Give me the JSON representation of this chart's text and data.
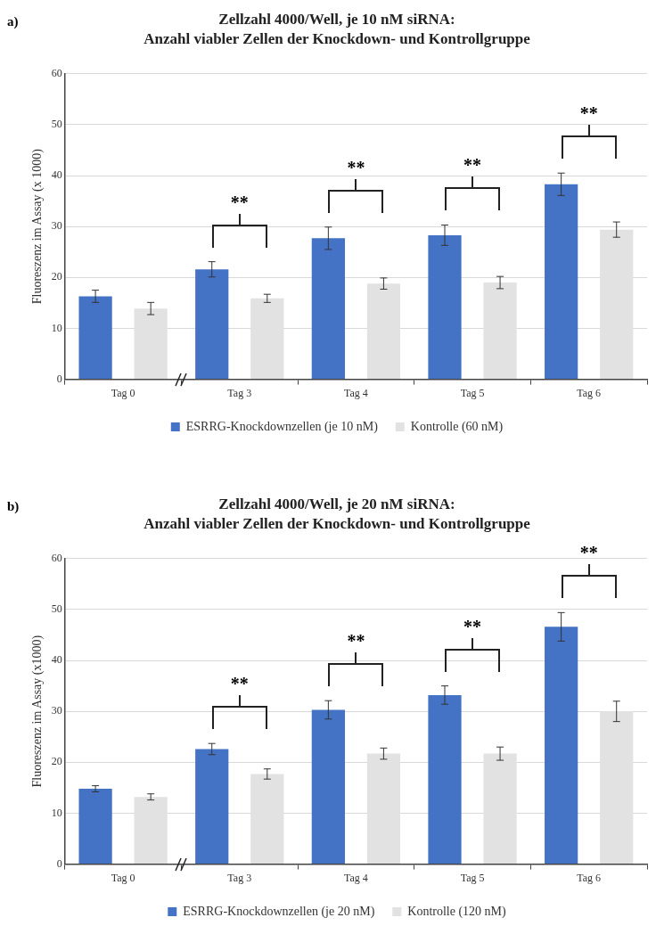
{
  "chart_data": [
    {
      "type": "bar",
      "title": "Zellzahl 4000/Well, je 10 nM siRNA:",
      "subtitle": "Anzahl viabler Zellen der Knockdown- und Kontrollgruppe",
      "ylabel": "Fluoreszenz im Assay (x 1000)",
      "categories": [
        "Tag 0",
        "Tag 3",
        "Tag 4",
        "Tag 5",
        "Tag 6"
      ],
      "series": [
        {
          "name": "ESRRG-Knockdownzellen (je 10 nM)",
          "color": "#4472c4",
          "values": [
            16.3,
            21.6,
            27.7,
            28.3,
            38.3
          ],
          "errors": [
            1.2,
            1.5,
            2.2,
            2.0,
            2.2
          ]
        },
        {
          "name": "Kontrolle (60 nM)",
          "color": "#e2e2e2",
          "values": [
            13.9,
            15.9,
            18.8,
            19.0,
            29.4
          ],
          "errors": [
            1.2,
            0.8,
            1.1,
            1.2,
            1.5
          ]
        }
      ],
      "ylim": [
        0,
        60
      ],
      "yticks": [
        0,
        10,
        20,
        30,
        40,
        50,
        60
      ],
      "grid": "y",
      "legend": "bottom",
      "annotations": [
        "a)",
        "**",
        "**",
        "**",
        "**"
      ]
    },
    {
      "type": "bar",
      "title": "Zellzahl 4000/Well, je 20 nM siRNA:",
      "subtitle": "Anzahl viabler Zellen der Knockdown- und Kontrollgruppe",
      "ylabel": "Fluoreszenz im Assay (x1000)",
      "categories": [
        "Tag 0",
        "Tag 3",
        "Tag 4",
        "Tag 5",
        "Tag 6"
      ],
      "series": [
        {
          "name": "ESRRG-Knockdownzellen (je 20 nM)",
          "color": "#4472c4",
          "values": [
            14.8,
            22.6,
            30.3,
            33.2,
            46.6
          ],
          "errors": [
            0.6,
            1.1,
            1.8,
            1.8,
            2.8
          ]
        },
        {
          "name": "Kontrolle (120 nM)",
          "color": "#e2e2e2",
          "values": [
            13.2,
            17.7,
            21.7,
            21.7,
            30.0
          ],
          "errors": [
            0.6,
            1.0,
            1.1,
            1.3,
            2.0
          ]
        }
      ],
      "ylim": [
        0,
        60
      ],
      "yticks": [
        0,
        10,
        20,
        30,
        40,
        50,
        60
      ],
      "grid": "y",
      "legend": "bottom",
      "annotations": [
        "b)",
        "**",
        "**",
        "**",
        "**"
      ]
    }
  ]
}
